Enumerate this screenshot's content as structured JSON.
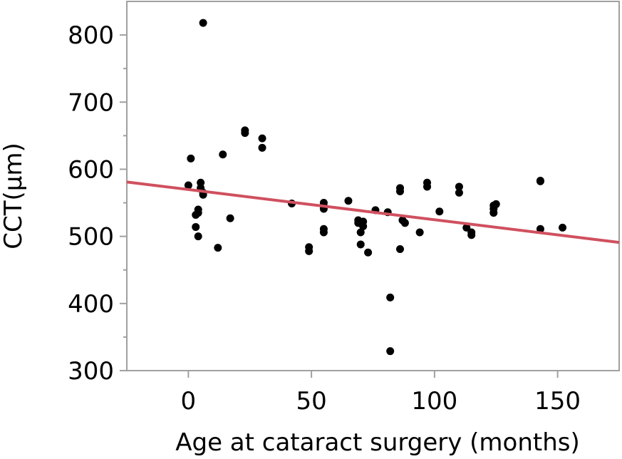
{
  "chart_data": {
    "type": "scatter",
    "title": "",
    "xlabel": "Age at cataract surgery (months)",
    "ylabel": "CCT(µm)",
    "xlim": [
      -25,
      175
    ],
    "ylim": [
      300,
      850
    ],
    "xticks": [
      0,
      50,
      100,
      150
    ],
    "yticks": [
      300,
      400,
      500,
      600,
      700,
      800
    ],
    "grid": false,
    "legend": "none",
    "colors": {
      "points": "#000000",
      "trendline": "#d0505f",
      "frame": "#a0a0a0"
    },
    "trendline": {
      "x": [
        -25,
        175
      ],
      "y": [
        581,
        491
      ]
    },
    "points": [
      {
        "x": 6,
        "y": 818
      },
      {
        "x": 23,
        "y": 658
      },
      {
        "x": 23,
        "y": 654
      },
      {
        "x": 30,
        "y": 646
      },
      {
        "x": 30,
        "y": 632
      },
      {
        "x": 14,
        "y": 622
      },
      {
        "x": 1,
        "y": 616
      },
      {
        "x": 0,
        "y": 576
      },
      {
        "x": 5,
        "y": 580
      },
      {
        "x": 5,
        "y": 572
      },
      {
        "x": 6,
        "y": 565
      },
      {
        "x": 6,
        "y": 562
      },
      {
        "x": 4,
        "y": 540
      },
      {
        "x": 4,
        "y": 535
      },
      {
        "x": 3,
        "y": 532
      },
      {
        "x": 17,
        "y": 527
      },
      {
        "x": 3,
        "y": 514
      },
      {
        "x": 4,
        "y": 500
      },
      {
        "x": 12,
        "y": 483
      },
      {
        "x": 42,
        "y": 549
      },
      {
        "x": 49,
        "y": 484
      },
      {
        "x": 49,
        "y": 478
      },
      {
        "x": 55,
        "y": 550
      },
      {
        "x": 55,
        "y": 545
      },
      {
        "x": 55,
        "y": 541
      },
      {
        "x": 55,
        "y": 511
      },
      {
        "x": 55,
        "y": 506
      },
      {
        "x": 65,
        "y": 553
      },
      {
        "x": 69,
        "y": 524
      },
      {
        "x": 69,
        "y": 520
      },
      {
        "x": 70,
        "y": 506
      },
      {
        "x": 70,
        "y": 488
      },
      {
        "x": 71,
        "y": 522
      },
      {
        "x": 71,
        "y": 515
      },
      {
        "x": 73,
        "y": 476
      },
      {
        "x": 76,
        "y": 539
      },
      {
        "x": 81,
        "y": 536
      },
      {
        "x": 82,
        "y": 409
      },
      {
        "x": 82,
        "y": 329
      },
      {
        "x": 86,
        "y": 572
      },
      {
        "x": 86,
        "y": 567
      },
      {
        "x": 86,
        "y": 481
      },
      {
        "x": 87,
        "y": 524
      },
      {
        "x": 88,
        "y": 520
      },
      {
        "x": 94,
        "y": 506
      },
      {
        "x": 97,
        "y": 580
      },
      {
        "x": 97,
        "y": 574
      },
      {
        "x": 102,
        "y": 537
      },
      {
        "x": 110,
        "y": 574
      },
      {
        "x": 110,
        "y": 565
      },
      {
        "x": 113,
        "y": 513
      },
      {
        "x": 115,
        "y": 506
      },
      {
        "x": 115,
        "y": 502
      },
      {
        "x": 124,
        "y": 546
      },
      {
        "x": 124,
        "y": 541
      },
      {
        "x": 124,
        "y": 535
      },
      {
        "x": 125,
        "y": 548
      },
      {
        "x": 143,
        "y": 583
      },
      {
        "x": 143,
        "y": 582
      },
      {
        "x": 143,
        "y": 511
      },
      {
        "x": 152,
        "y": 513
      }
    ]
  }
}
